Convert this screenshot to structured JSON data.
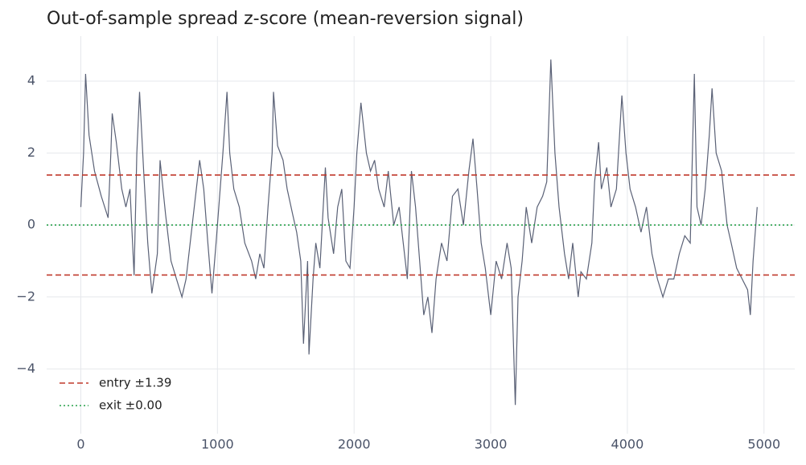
{
  "chart_data": {
    "type": "line",
    "title": "Out-of-sample spread z-score (mean-reversion signal)",
    "x": [
      0,
      20,
      35,
      60,
      100,
      150,
      200,
      220,
      230,
      260,
      300,
      330,
      360,
      390,
      410,
      430,
      460,
      490,
      520,
      560,
      580,
      620,
      660,
      700,
      740,
      770,
      800,
      830,
      870,
      900,
      930,
      960,
      990,
      1010,
      1040,
      1070,
      1090,
      1120,
      1160,
      1200,
      1250,
      1280,
      1310,
      1340,
      1370,
      1400,
      1410,
      1440,
      1480,
      1510,
      1550,
      1580,
      1610,
      1630,
      1660,
      1670,
      1700,
      1720,
      1750,
      1790,
      1810,
      1850,
      1880,
      1910,
      1940,
      1970,
      2000,
      2020,
      2050,
      2090,
      2120,
      2150,
      2180,
      2220,
      2250,
      2290,
      2330,
      2360,
      2390,
      2420,
      2450,
      2480,
      2510,
      2540,
      2570,
      2600,
      2640,
      2680,
      2720,
      2760,
      2800,
      2840,
      2870,
      2900,
      2930,
      2960,
      3000,
      3040,
      3080,
      3120,
      3150,
      3180,
      3200,
      3230,
      3260,
      3300,
      3340,
      3380,
      3410,
      3440,
      3470,
      3500,
      3540,
      3570,
      3600,
      3640,
      3660,
      3700,
      3740,
      3760,
      3790,
      3810,
      3850,
      3880,
      3920,
      3960,
      3990,
      4020,
      4060,
      4100,
      4140,
      4180,
      4220,
      4260,
      4300,
      4340,
      4380,
      4420,
      4460,
      4490,
      4510,
      4540,
      4570,
      4600,
      4620,
      4650,
      4690,
      4730,
      4760,
      4800,
      4840,
      4880,
      4900,
      4920,
      4950
    ],
    "series": [
      {
        "color": "#5a6176",
        "values": [
          0.5,
          2.0,
          4.2,
          2.5,
          1.5,
          0.8,
          0.2,
          2.0,
          3.1,
          2.3,
          1.0,
          0.5,
          1.0,
          -1.4,
          2.0,
          3.7,
          1.5,
          -0.5,
          -1.9,
          -0.8,
          1.8,
          0.3,
          -1.0,
          -1.5,
          -2.0,
          -1.5,
          -0.5,
          0.5,
          1.8,
          1.0,
          -0.5,
          -1.9,
          -0.5,
          0.5,
          2.0,
          3.7,
          2.0,
          1.0,
          0.5,
          -0.5,
          -1.0,
          -1.5,
          -0.8,
          -1.2,
          0.5,
          2.0,
          3.7,
          2.2,
          1.8,
          1.0,
          0.3,
          -0.2,
          -1.0,
          -3.3,
          -1.0,
          -3.6,
          -1.5,
          -0.5,
          -1.2,
          1.6,
          0.2,
          -0.8,
          0.5,
          1.0,
          -1.0,
          -1.2,
          0.5,
          2.0,
          3.4,
          2.0,
          1.5,
          1.8,
          1.0,
          0.5,
          1.5,
          0.0,
          0.5,
          -0.5,
          -1.5,
          1.5,
          0.5,
          -1.0,
          -2.5,
          -2.0,
          -3.0,
          -1.5,
          -0.5,
          -1.0,
          0.8,
          1.0,
          0.0,
          1.5,
          2.4,
          1.0,
          -0.5,
          -1.2,
          -2.5,
          -1.0,
          -1.5,
          -0.5,
          -1.2,
          -5.0,
          -2.0,
          -1.0,
          0.5,
          -0.5,
          0.5,
          0.8,
          1.2,
          4.6,
          2.0,
          0.5,
          -0.8,
          -1.5,
          -0.5,
          -2.0,
          -1.3,
          -1.5,
          -0.5,
          1.2,
          2.3,
          1.0,
          1.6,
          0.5,
          1.0,
          3.6,
          2.0,
          1.0,
          0.5,
          -0.2,
          0.5,
          -0.8,
          -1.5,
          -2.0,
          -1.5,
          -1.5,
          -0.8,
          -0.3,
          -0.5,
          4.2,
          0.5,
          0.0,
          1.0,
          2.5,
          3.8,
          2.0,
          1.5,
          0.0,
          -0.5,
          -1.2,
          -1.5,
          -1.8,
          -2.5,
          -1.0,
          0.5
        ]
      }
    ],
    "hlines": [
      {
        "name": "entry ±1.39",
        "values": [
          1.39,
          -1.39
        ],
        "color": "#c0392b",
        "style": "dashed"
      },
      {
        "name": "exit ±0.00",
        "values": [
          0
        ],
        "color": "#27a04a",
        "style": "dotted"
      }
    ],
    "xlim": [
      -250,
      5225
    ],
    "ylim": [
      -5.8,
      5.25
    ],
    "xticks": [
      0,
      1000,
      2000,
      3000,
      4000,
      5000
    ],
    "yticks": [
      {
        "value": -4,
        "label": "−4"
      },
      {
        "value": -2,
        "label": "−2"
      },
      0,
      2,
      4
    ],
    "grid": true,
    "legend": "lower left"
  }
}
